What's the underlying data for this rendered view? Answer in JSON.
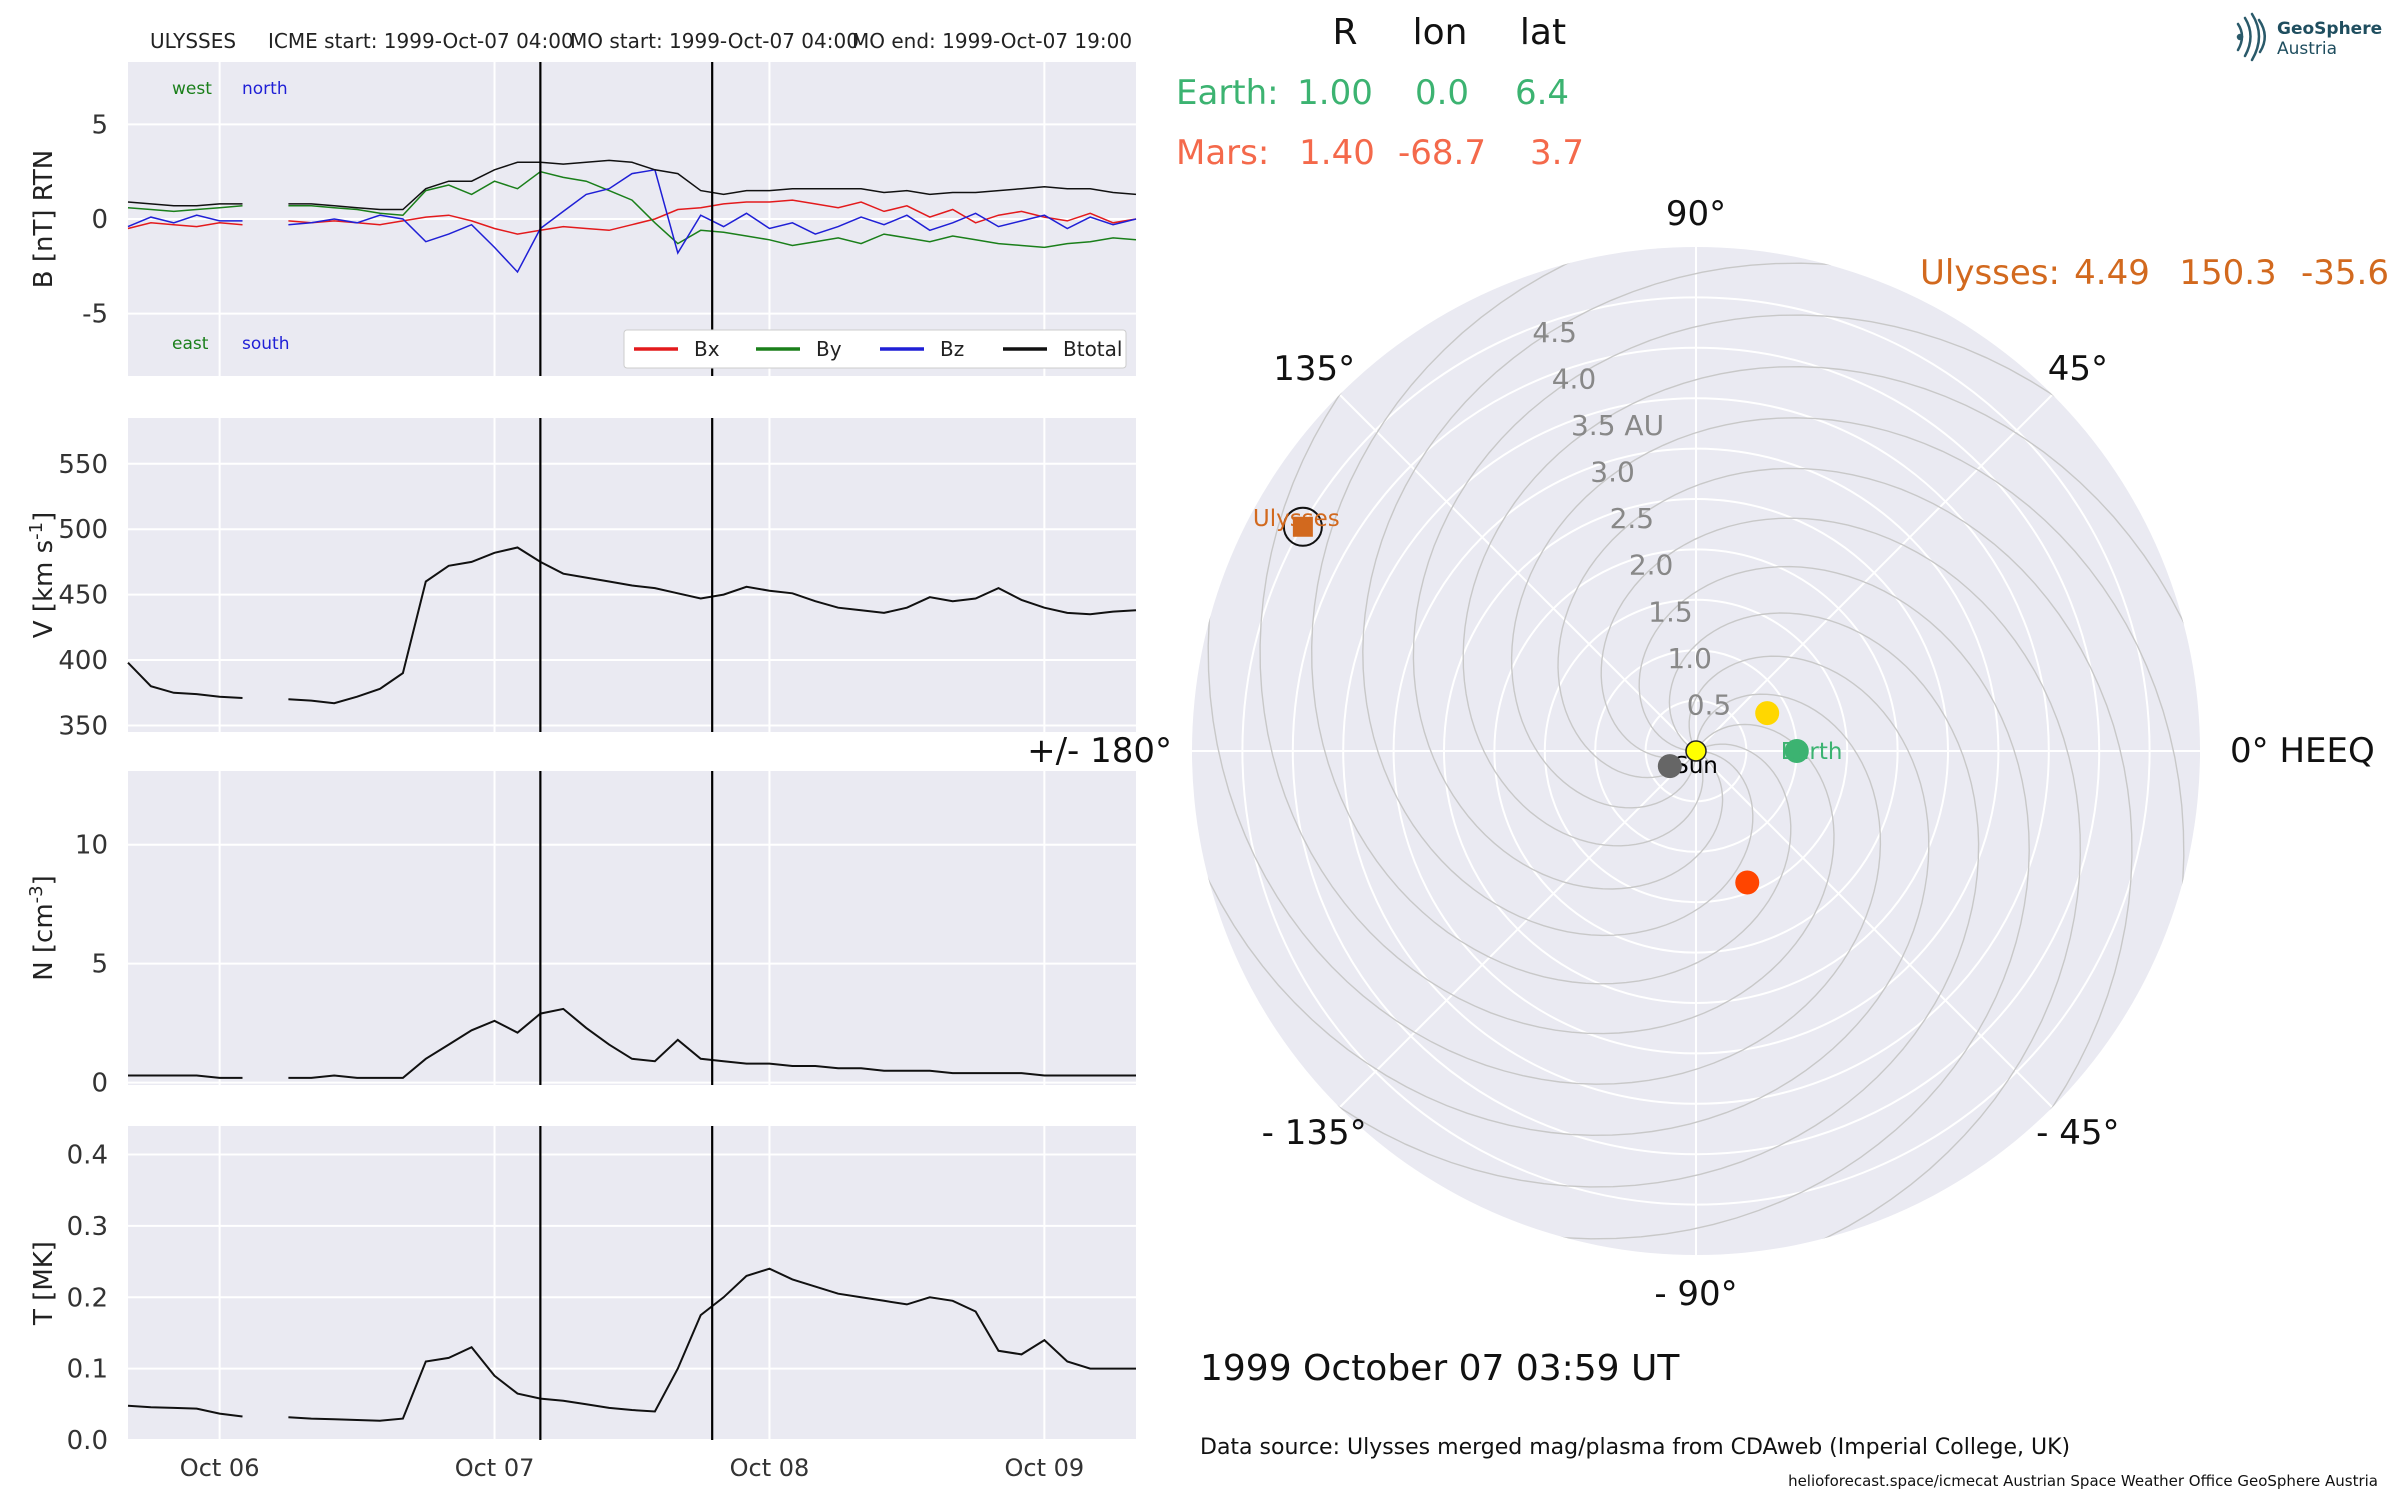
{
  "header": {
    "spacecraft": "ULYSSES",
    "icme_start": "ICME start: 1999-Oct-07 04:00",
    "mo_start": "MO start: 1999-Oct-07 04:00",
    "mo_end": "MO end: 1999-Oct-07 19:00"
  },
  "logo": {
    "line1": "GeoSphere",
    "line2": "Austria",
    "icon": "geosphere-logo-icon"
  },
  "position_table": {
    "headers": [
      "R",
      "lon",
      "lat"
    ],
    "rows": [
      {
        "name": "Earth:",
        "R": "1.00",
        "lon": "0.0",
        "lat": "6.4",
        "color": "#3cb371"
      },
      {
        "name": "Mars:",
        "R": "1.40",
        "lon": "-68.7",
        "lat": "3.7",
        "color": "#f4694b"
      }
    ],
    "ulysses": {
      "name": "Ulysses:",
      "R": "4.49",
      "lon": "150.3",
      "lat": "-35.6",
      "color": "#d2691e"
    }
  },
  "timestamp": "1999 October 07  03:59 UT",
  "data_source": "Data source: Ulysses merged mag/plasma from CDAweb (Imperial College, UK)",
  "footer": "helioforecast.space/icmecat   Austrian Space Weather Office   GeoSphere Austria",
  "chart_data": [
    {
      "type": "line",
      "panel": "magnetic-field",
      "ylabel": "B [nT] RTN",
      "xlim": [
        "1999-10-05T16:00",
        "1999-10-09T08:00"
      ],
      "ylim": [
        -8.3,
        8.3
      ],
      "yticks": [
        -5,
        0,
        5
      ],
      "xticks": [
        "Oct 06",
        "Oct 07",
        "Oct 08",
        "Oct 09"
      ],
      "xtick_times": [
        "1999-10-06",
        "1999-10-07",
        "1999-10-08",
        "1999-10-09"
      ],
      "annotations": {
        "west": "west",
        "north": "north",
        "east": "east",
        "south": "south"
      },
      "legend": "bottom-right",
      "x_hours": [
        0,
        2,
        4,
        6,
        8,
        10,
        12,
        14,
        16,
        18,
        20,
        22,
        24,
        26,
        28,
        30,
        32,
        34,
        36,
        38,
        40,
        42,
        44,
        46,
        48,
        50,
        52,
        54,
        56,
        58,
        60,
        62,
        64,
        66,
        68,
        70,
        72,
        74,
        76,
        78,
        80,
        82,
        84,
        86,
        88
      ],
      "series": [
        {
          "name": "Bx",
          "color": "#e31a1c",
          "values": [
            -0.5,
            -0.2,
            -0.3,
            -0.4,
            -0.2,
            -0.3,
            null,
            -0.1,
            -0.2,
            -0.1,
            -0.2,
            -0.3,
            -0.1,
            0.1,
            0.2,
            -0.1,
            -0.5,
            -0.8,
            -0.6,
            -0.4,
            -0.5,
            -0.6,
            -0.3,
            0.0,
            0.5,
            0.6,
            0.8,
            0.9,
            0.9,
            1.0,
            0.8,
            0.6,
            0.9,
            0.4,
            0.7,
            0.1,
            0.5,
            -0.2,
            0.2,
            0.4,
            0.1,
            -0.1,
            0.3,
            -0.2,
            0.0
          ]
        },
        {
          "name": "By",
          "color": "#1a7f1a",
          "values": [
            0.6,
            0.5,
            0.4,
            0.5,
            0.6,
            0.7,
            null,
            0.7,
            0.7,
            0.6,
            0.5,
            0.3,
            0.2,
            1.5,
            1.8,
            1.3,
            2.0,
            1.6,
            2.5,
            2.2,
            2.0,
            1.5,
            1.0,
            -0.2,
            -1.3,
            -0.6,
            -0.7,
            -0.9,
            -1.1,
            -1.4,
            -1.2,
            -1.0,
            -1.3,
            -0.8,
            -1.0,
            -1.2,
            -0.9,
            -1.1,
            -1.3,
            -1.4,
            -1.5,
            -1.3,
            -1.2,
            -1.0,
            -1.1
          ]
        },
        {
          "name": "Bz",
          "color": "#1f1fd6",
          "values": [
            -0.4,
            0.1,
            -0.2,
            0.2,
            -0.1,
            -0.1,
            null,
            -0.3,
            -0.2,
            0.0,
            -0.2,
            0.2,
            0.0,
            -1.2,
            -0.8,
            -0.3,
            -1.5,
            -2.8,
            -0.5,
            0.4,
            1.3,
            1.6,
            2.4,
            2.6,
            -1.8,
            0.2,
            -0.4,
            0.3,
            -0.5,
            -0.2,
            -0.8,
            -0.4,
            0.1,
            -0.3,
            0.2,
            -0.6,
            -0.2,
            0.3,
            -0.4,
            -0.1,
            0.2,
            -0.5,
            0.1,
            -0.3,
            0.0
          ]
        },
        {
          "name": "Btotal",
          "color": "#111111",
          "values": [
            0.9,
            0.8,
            0.7,
            0.7,
            0.8,
            0.8,
            null,
            0.8,
            0.8,
            0.7,
            0.6,
            0.5,
            0.5,
            1.6,
            2.0,
            2.0,
            2.6,
            3.0,
            3.0,
            2.9,
            3.0,
            3.1,
            3.0,
            2.6,
            2.4,
            1.5,
            1.3,
            1.5,
            1.5,
            1.6,
            1.6,
            1.6,
            1.6,
            1.4,
            1.5,
            1.3,
            1.4,
            1.4,
            1.5,
            1.6,
            1.7,
            1.6,
            1.6,
            1.4,
            1.3
          ]
        }
      ]
    },
    {
      "type": "line",
      "panel": "speed",
      "ylabel": "V [km s^-1]",
      "xlim": [
        "1999-10-05T16:00",
        "1999-10-09T08:00"
      ],
      "ylim": [
        345,
        585
      ],
      "yticks": [
        350,
        400,
        450,
        500,
        550
      ],
      "x_hours": [
        0,
        2,
        4,
        6,
        8,
        10,
        12,
        14,
        16,
        18,
        20,
        22,
        24,
        26,
        28,
        30,
        32,
        34,
        36,
        38,
        40,
        42,
        44,
        46,
        48,
        50,
        52,
        54,
        56,
        58,
        60,
        62,
        64,
        66,
        68,
        70,
        72,
        74,
        76,
        78,
        80,
        82,
        84,
        86,
        88
      ],
      "series": [
        {
          "name": "V",
          "color": "#111111",
          "values": [
            398,
            380,
            375,
            374,
            372,
            371,
            null,
            370,
            369,
            367,
            372,
            378,
            390,
            460,
            472,
            475,
            482,
            486,
            475,
            466,
            463,
            460,
            457,
            455,
            451,
            447,
            450,
            456,
            453,
            451,
            445,
            440,
            438,
            436,
            440,
            448,
            445,
            447,
            455,
            446,
            440,
            436,
            435,
            437,
            438
          ]
        }
      ]
    },
    {
      "type": "line",
      "panel": "density",
      "ylabel": "N [cm^-3]",
      "xlim": [
        "1999-10-05T16:00",
        "1999-10-09T08:00"
      ],
      "ylim": [
        -0.1,
        13.1
      ],
      "yticks": [
        0,
        5,
        10
      ],
      "x_hours": [
        0,
        2,
        4,
        6,
        8,
        10,
        12,
        14,
        16,
        18,
        20,
        22,
        24,
        26,
        28,
        30,
        32,
        34,
        36,
        38,
        40,
        42,
        44,
        46,
        48,
        50,
        52,
        54,
        56,
        58,
        60,
        62,
        64,
        66,
        68,
        70,
        72,
        74,
        76,
        78,
        80,
        82,
        84,
        86,
        88
      ],
      "series": [
        {
          "name": "N",
          "color": "#111111",
          "values": [
            0.3,
            0.3,
            0.3,
            0.3,
            0.2,
            0.2,
            null,
            0.2,
            0.2,
            0.3,
            0.2,
            0.2,
            0.2,
            1.0,
            1.6,
            2.2,
            2.6,
            2.1,
            2.9,
            3.1,
            2.3,
            1.6,
            1.0,
            0.9,
            1.8,
            1.0,
            0.9,
            0.8,
            0.8,
            0.7,
            0.7,
            0.6,
            0.6,
            0.5,
            0.5,
            0.5,
            0.4,
            0.4,
            0.4,
            0.4,
            0.3,
            0.3,
            0.3,
            0.3,
            0.3
          ]
        }
      ]
    },
    {
      "type": "line",
      "panel": "temperature",
      "ylabel": "T [MK]",
      "xlim": [
        "1999-10-05T16:00",
        "1999-10-09T08:00"
      ],
      "ylim": [
        0.0,
        0.44
      ],
      "yticks": [
        0.0,
        0.1,
        0.2,
        0.3,
        0.4
      ],
      "x_hours": [
        0,
        2,
        4,
        6,
        8,
        10,
        12,
        14,
        16,
        18,
        20,
        22,
        24,
        26,
        28,
        30,
        32,
        34,
        36,
        38,
        40,
        42,
        44,
        46,
        48,
        50,
        52,
        54,
        56,
        58,
        60,
        62,
        64,
        66,
        68,
        70,
        72,
        74,
        76,
        78,
        80,
        82,
        84,
        86,
        88
      ],
      "series": [
        {
          "name": "T",
          "color": "#111111",
          "values": [
            0.048,
            0.046,
            0.045,
            0.044,
            0.037,
            0.033,
            null,
            0.032,
            0.03,
            0.029,
            0.028,
            0.027,
            0.03,
            0.11,
            0.115,
            0.13,
            0.09,
            0.065,
            0.058,
            0.055,
            0.05,
            0.045,
            0.042,
            0.04,
            0.1,
            0.175,
            0.2,
            0.23,
            0.24,
            0.225,
            0.215,
            0.205,
            0.2,
            0.195,
            0.19,
            0.2,
            0.195,
            0.18,
            0.125,
            0.12,
            0.14,
            0.11,
            0.1,
            0.1,
            0.1
          ]
        }
      ]
    },
    {
      "type": "scatter",
      "panel": "polar-position",
      "projection": "polar",
      "grid": true,
      "rlim": [
        0,
        5
      ],
      "radial_ticks": [
        "0.5",
        "1.0",
        "1.5",
        "2.0",
        "2.5",
        "3.0",
        "3.5 AU",
        "4.0",
        "4.5"
      ],
      "radial_values": [
        0.5,
        1.0,
        1.5,
        2.0,
        2.5,
        3.0,
        3.5,
        4.0,
        4.5
      ],
      "angle_labels": [
        {
          "text": "0° HEEQ",
          "deg": 0
        },
        {
          "text": "45°",
          "deg": 45
        },
        {
          "text": "90°",
          "deg": 90
        },
        {
          "text": "135°",
          "deg": 135
        },
        {
          "text": "+/- 180°",
          "deg": 180
        },
        {
          "text": "- 135°",
          "deg": -135
        },
        {
          "text": "- 90°",
          "deg": -90
        },
        {
          "text": "- 45°",
          "deg": -45
        }
      ],
      "spiral_count": 12,
      "points": [
        {
          "name": "Sun",
          "r": 0.0,
          "lon": 0.0,
          "color": "#ffff00",
          "marker": "circle",
          "label": "Sun"
        },
        {
          "name": "Earth",
          "r": 1.0,
          "lon": 0.0,
          "color": "#3cb371",
          "marker": "circle",
          "label": "Earth"
        },
        {
          "name": "Mars",
          "r": 1.4,
          "lon": -68.7,
          "color": "#ff4500",
          "marker": "circle",
          "label": ""
        },
        {
          "name": "Ulysses",
          "r": 4.49,
          "lon": 150.3,
          "color": "#d2691e",
          "marker": "square",
          "label": "Ulysses"
        },
        {
          "name": "yellow-body",
          "r": 0.8,
          "lon": 28.0,
          "color": "#ffd700",
          "marker": "circle",
          "label": ""
        },
        {
          "name": "gray-body",
          "r": 0.3,
          "lon": -150.0,
          "color": "#666666",
          "marker": "circle",
          "label": ""
        }
      ]
    }
  ]
}
